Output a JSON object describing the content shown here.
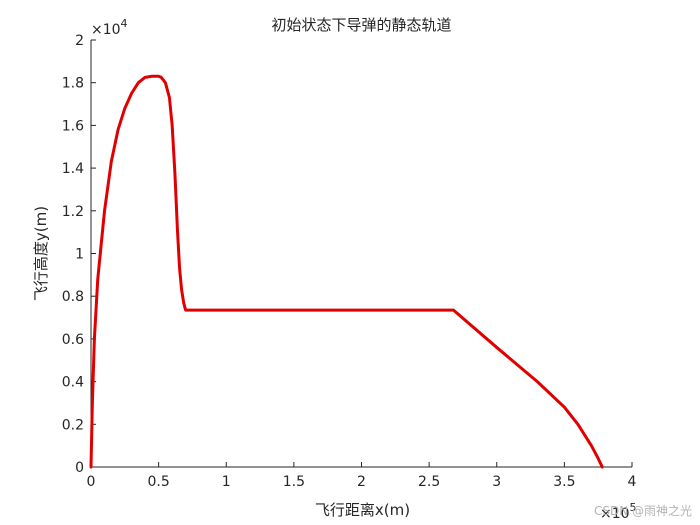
{
  "chart_data": {
    "type": "line",
    "title": "初始状态下导弹的静态轨道",
    "xlabel": "飞行距离x(m)",
    "ylabel": "飞行高度y(m)",
    "xlim": [
      0,
      400000
    ],
    "ylim": [
      0,
      20000
    ],
    "x_ticks": [
      0,
      0.5,
      1,
      1.5,
      2,
      2.5,
      3,
      3.5,
      4
    ],
    "y_ticks": [
      0,
      0.2,
      0.4,
      0.6,
      0.8,
      1,
      1.2,
      1.4,
      1.6,
      1.8,
      2
    ],
    "x_exponent": "×10",
    "x_exponent_power": "5",
    "y_exponent": "×10",
    "y_exponent_power": "4",
    "grid": false,
    "line_color": "#e00000",
    "series": [
      {
        "x": [
          0,
          1000,
          2500,
          5000,
          10000,
          15000,
          20000,
          25000,
          30000,
          35000,
          40000,
          45000,
          50000,
          52000,
          55000,
          58000,
          60000,
          62000,
          64000,
          65500,
          67000,
          68500,
          69500,
          70000,
          90000,
          150000,
          200000,
          250000,
          268000,
          300000,
          330000,
          350000,
          360000,
          370000,
          375000,
          378000
        ],
        "y": [
          0,
          3000,
          6000,
          8800,
          12000,
          14300,
          15800,
          16800,
          17500,
          18000,
          18250,
          18300,
          18300,
          18250,
          18000,
          17300,
          16000,
          13800,
          11000,
          9300,
          8300,
          7700,
          7450,
          7350,
          7350,
          7350,
          7350,
          7350,
          7350,
          5600,
          4000,
          2800,
          2000,
          1000,
          400,
          0
        ]
      }
    ]
  },
  "watermark": "CSDN @雨神之光"
}
